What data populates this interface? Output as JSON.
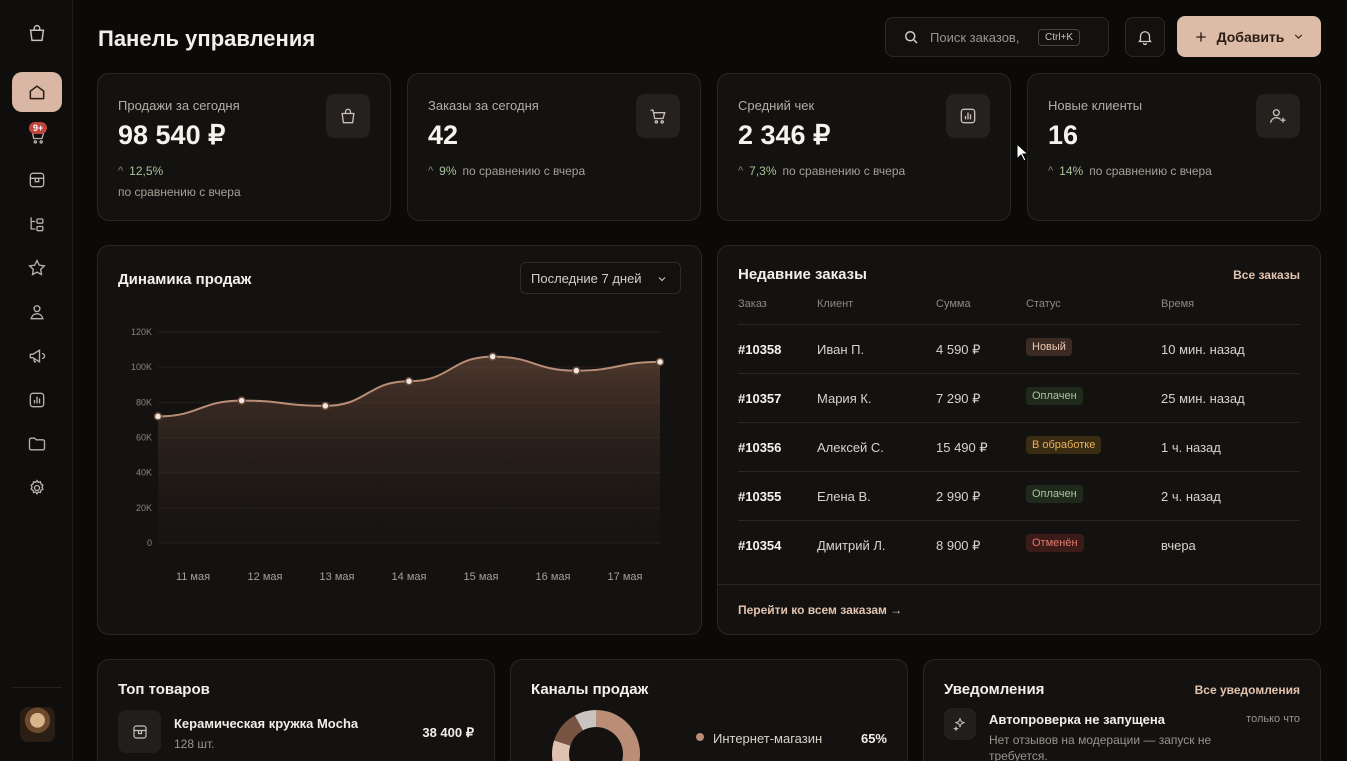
{
  "header": {
    "title": "Панель управления",
    "search_placeholder": "Поиск заказов,",
    "search_shortcut": "Ctrl+K",
    "add_label": "Добавить"
  },
  "sidebar": {
    "items": [
      {
        "icon": "home-icon",
        "active": true
      },
      {
        "icon": "cart-icon",
        "badge": "9+"
      },
      {
        "icon": "box-icon"
      },
      {
        "icon": "hierarchy-icon"
      },
      {
        "icon": "star-icon"
      },
      {
        "icon": "user-icon"
      },
      {
        "icon": "megaphone-icon"
      },
      {
        "icon": "chart-icon"
      },
      {
        "icon": "folder-icon"
      },
      {
        "icon": "gear-icon"
      }
    ]
  },
  "kpis": [
    {
      "label": "Продажи за сегодня",
      "value": "98 540 ₽",
      "delta": "12,5%",
      "sub": "по сравнению с вчера",
      "icon": "bag-icon"
    },
    {
      "label": "Заказы за сегодня",
      "value": "42",
      "delta": "9%",
      "sub": "по сравнению с вчера",
      "icon": "cart-icon"
    },
    {
      "label": "Средний чек",
      "value": "2 346 ₽",
      "delta": "7,3%",
      "sub": "по сравнению с вчера",
      "icon": "receipt-chart-icon"
    },
    {
      "label": "Новые клиенты",
      "value": "16",
      "delta": "14%",
      "sub": "по сравнению с вчера",
      "icon": "user-plus-icon"
    }
  ],
  "sales": {
    "title": "Динамика продаж",
    "range": "Последние 7 дней"
  },
  "chart_data": {
    "type": "area",
    "categories": [
      "11 мая",
      "12 мая",
      "13 мая",
      "14 мая",
      "15 мая",
      "16 мая",
      "17 мая"
    ],
    "values": [
      72000,
      81000,
      78000,
      92000,
      106000,
      98000,
      103000
    ],
    "yticks": [
      "0",
      "20K",
      "40K",
      "60K",
      "80K",
      "100K",
      "120K"
    ],
    "ylim": [
      0,
      120000
    ],
    "grid": true
  },
  "orders": {
    "title": "Недавние заказы",
    "all_link": "Все заказы",
    "columns": [
      "Заказ",
      "Клиент",
      "Сумма",
      "Статус",
      "Время"
    ],
    "rows": [
      {
        "id": "#10358",
        "client": "Иван П.",
        "sum": "4 590 ₽",
        "status": "Новый",
        "status_color": "#e9c9b4",
        "status_bg": "#3b2b22",
        "time": "10 мин. назад"
      },
      {
        "id": "#10357",
        "client": "Мария К.",
        "sum": "7 290 ₽",
        "status": "Оплачен",
        "status_color": "#a9c29c",
        "status_bg": "#1f2a1d",
        "time": "25 мин. назад"
      },
      {
        "id": "#10356",
        "client": "Алексей С.",
        "sum": "15 490 ₽",
        "status": "В обработке",
        "status_color": "#e8b15a",
        "status_bg": "#3a2c12",
        "time": "1 ч. назад"
      },
      {
        "id": "#10355",
        "client": "Елена В.",
        "sum": "2 990 ₽",
        "status": "Оплачен",
        "status_color": "#a9c29c",
        "status_bg": "#1f2a1d",
        "time": "2 ч. назад"
      },
      {
        "id": "#10354",
        "client": "Дмитрий Л.",
        "sum": "8 900 ₽",
        "status": "Отменён",
        "status_color": "#e07b72",
        "status_bg": "#3a1b18",
        "time": "вчера"
      }
    ],
    "footer_link": "Перейти ко всем заказам →"
  },
  "top_products": {
    "title": "Топ товаров",
    "items": [
      {
        "name": "Керамическая кружка Mocha",
        "qty": "128 шт.",
        "price": "38 400 ₽"
      }
    ]
  },
  "channels": {
    "title": "Каналы продаж",
    "items": [
      {
        "name": "Интернет-магазин",
        "pct": "65%",
        "value": 65,
        "color": "#b98d76"
      }
    ],
    "donut_other": [
      {
        "value": 15,
        "color": "#e0c2b0"
      },
      {
        "value": 12,
        "color": "#7a5443"
      },
      {
        "value": 8,
        "color": "#c9c4bf"
      }
    ]
  },
  "notifications": {
    "title": "Уведомления",
    "all_link": "Все уведомления",
    "items": [
      {
        "title": "Автопроверка не запущена",
        "text": "Нет отзывов на модерации — запуск не требуется.",
        "time": "только что"
      }
    ]
  }
}
